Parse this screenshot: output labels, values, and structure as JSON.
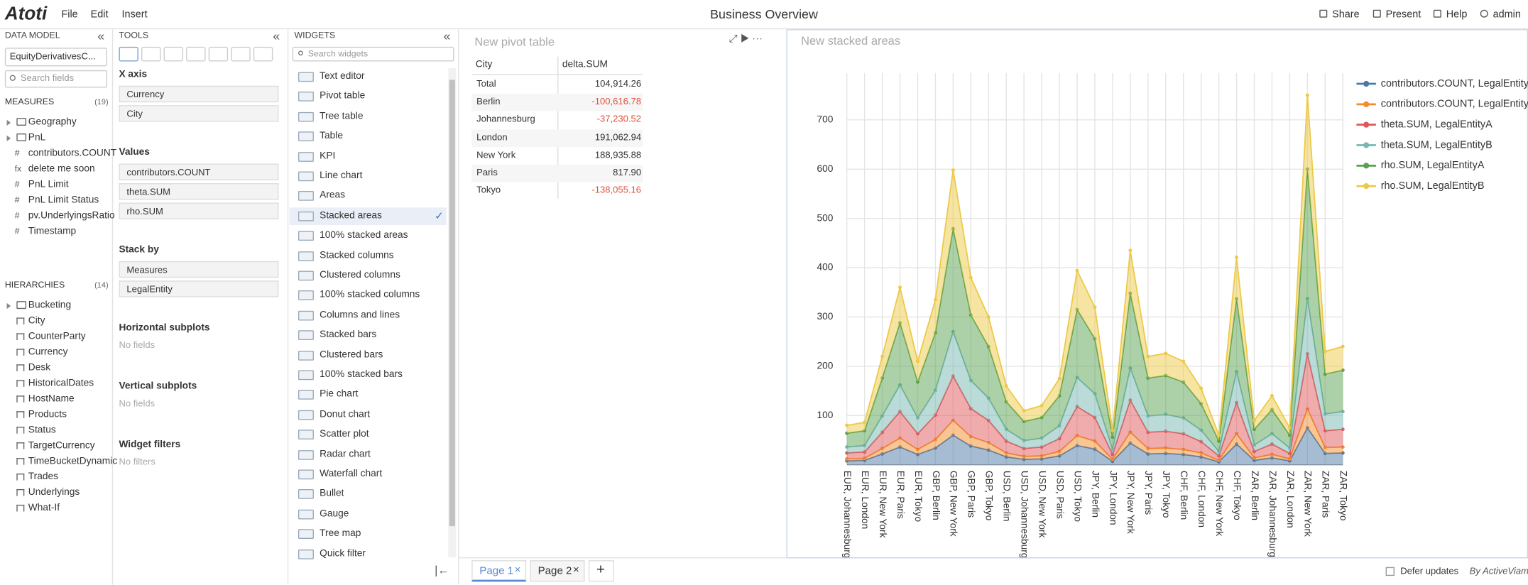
{
  "header": {
    "logo": "Atoti",
    "menu": [
      "File",
      "Edit",
      "Insert"
    ],
    "title": "Business Overview",
    "actions": [
      "Share",
      "Present",
      "Help",
      "admin"
    ]
  },
  "data_model": {
    "title": "DATA MODEL",
    "cube": "EquityDerivativesC...",
    "search": "Search fields",
    "measures_title": "MEASURES",
    "measures_count": "(19)",
    "measures": [
      {
        "label": "Geography",
        "folder": true
      },
      {
        "label": "PnL",
        "folder": true
      },
      {
        "icon": "#",
        "label": "contributors.COUNT"
      },
      {
        "icon": "fx",
        "label": "delete me soon"
      },
      {
        "icon": "#",
        "label": "PnL Limit"
      },
      {
        "icon": "#",
        "label": "PnL Limit Status"
      },
      {
        "icon": "#",
        "label": "pv.UnderlyingsRatio"
      },
      {
        "icon": "#",
        "label": "Timestamp"
      }
    ],
    "hierarchies_title": "HIERARCHIES",
    "hierarchies_count": "(14)",
    "hierarchies": [
      {
        "label": "Bucketing",
        "folder": true
      },
      {
        "label": "City"
      },
      {
        "label": "CounterParty"
      },
      {
        "label": "Currency"
      },
      {
        "label": "Desk"
      },
      {
        "label": "HistoricalDates"
      },
      {
        "label": "HostName"
      },
      {
        "label": "Products"
      },
      {
        "label": "Status"
      },
      {
        "label": "TargetCurrency"
      },
      {
        "label": "TimeBucketDynamic"
      },
      {
        "label": "Trades"
      },
      {
        "label": "Underlyings"
      },
      {
        "label": "What-If"
      }
    ]
  },
  "tools": {
    "title": "TOOLS",
    "sections": [
      {
        "title": "X axis",
        "fields": [
          "Currency",
          "City"
        ]
      },
      {
        "title": "Values",
        "fields": [
          "contributors.COUNT",
          "theta.SUM",
          "rho.SUM"
        ]
      },
      {
        "title": "Stack by",
        "fields": [
          "Measures",
          "LegalEntity"
        ]
      },
      {
        "title": "Horizontal subplots",
        "empty": "No fields"
      },
      {
        "title": "Vertical subplots",
        "empty": "No fields"
      },
      {
        "title": "Widget filters",
        "empty": "No filters"
      }
    ]
  },
  "widgets": {
    "title": "WIDGETS",
    "search": "Search widgets",
    "selected_index": 7,
    "items": [
      "Text editor",
      "Pivot table",
      "Tree table",
      "Table",
      "KPI",
      "Line chart",
      "Areas",
      "Stacked areas",
      "100% stacked areas",
      "Stacked columns",
      "Clustered columns",
      "100% stacked columns",
      "Columns and lines",
      "Stacked bars",
      "Clustered bars",
      "100% stacked bars",
      "Pie chart",
      "Donut chart",
      "Scatter plot",
      "Radar chart",
      "Waterfall chart",
      "Bullet",
      "Gauge",
      "Tree map",
      "Quick filter"
    ]
  },
  "pivot": {
    "title": "New pivot table",
    "columns": [
      "City",
      "delta.SUM"
    ],
    "rows": [
      [
        "Total",
        "104,914.26"
      ],
      [
        "Berlin",
        "-100,616.78"
      ],
      [
        "Johannesburg",
        "-37,230.52"
      ],
      [
        "London",
        "191,062.94"
      ],
      [
        "New York",
        "188,935.88"
      ],
      [
        "Paris",
        "817.90"
      ],
      [
        "Tokyo",
        "-138,055.16"
      ]
    ]
  },
  "footer": {
    "tabs": [
      "Page 1",
      "Page 2"
    ],
    "add": "+",
    "defer": "Defer updates",
    "brand": "By ActiveViam"
  },
  "chart_data": {
    "type": "area",
    "stacked": true,
    "title": "New stacked areas",
    "grid": true,
    "legend": "right",
    "categories": [
      "EUR, Johannesburg",
      "EUR, London",
      "EUR, New York",
      "EUR, Paris",
      "EUR, Tokyo",
      "GBP, Berlin",
      "GBP, New York",
      "GBP, Paris",
      "GBP, Tokyo",
      "USD, Berlin",
      "USD, Johannesburg",
      "USD, New York",
      "USD, Paris",
      "USD, Tokyo",
      "JPY, Berlin",
      "JPY, London",
      "JPY, New York",
      "JPY, Paris",
      "JPY, Tokyo",
      "CHF, Berlin",
      "CHF, London",
      "CHF, New York",
      "CHF, Tokyo",
      "ZAR, Berlin",
      "ZAR, Johannesburg",
      "ZAR, London",
      "ZAR, New York",
      "ZAR, Paris",
      "ZAR, Tokyo"
    ],
    "ylim": [
      0,
      795
    ],
    "yticks": [
      100,
      200,
      300,
      400,
      500,
      600,
      700
    ],
    "series": [
      {
        "name": "contributors.COUNT, LegalEntityA",
        "color": "#4e79a7",
        "values": [
          8,
          9,
          22,
          36,
          21,
          34,
          60,
          38,
          30,
          16,
          11,
          12,
          18,
          39,
          32,
          7,
          44,
          22,
          23,
          21,
          16,
          6,
          42,
          9,
          14,
          8,
          75,
          23,
          24
        ]
      },
      {
        "name": "contributors.COUNT, LegalEntityB",
        "color": "#f28e2b",
        "values": [
          4,
          4,
          11,
          18,
          10,
          17,
          30,
          19,
          15,
          8,
          6,
          6,
          9,
          20,
          16,
          4,
          22,
          11,
          11,
          10,
          8,
          3,
          21,
          5,
          7,
          4,
          38,
          12,
          12
        ]
      },
      {
        "name": "theta.SUM, LegalEntityA",
        "color": "#e15759",
        "values": [
          12,
          13,
          33,
          54,
          32,
          50,
          90,
          57,
          45,
          24,
          16,
          18,
          26,
          59,
          48,
          10,
          65,
          33,
          34,
          32,
          23,
          9,
          63,
          13,
          21,
          11,
          112,
          34,
          36
        ]
      },
      {
        "name": "theta.SUM, LegalEntityB",
        "color": "#76b7b2",
        "values": [
          12,
          13,
          33,
          54,
          32,
          50,
          90,
          57,
          45,
          24,
          16,
          18,
          26,
          59,
          48,
          10,
          65,
          33,
          34,
          32,
          23,
          9,
          63,
          13,
          21,
          11,
          112,
          34,
          36
        ]
      },
      {
        "name": "rho.SUM, LegalEntityA",
        "color": "#59a14f",
        "values": [
          28,
          30,
          77,
          126,
          73,
          117,
          209,
          133,
          105,
          56,
          39,
          42,
          61,
          138,
          112,
          25,
          152,
          77,
          79,
          73,
          54,
          21,
          148,
          32,
          49,
          26,
          263,
          81,
          84
        ]
      },
      {
        "name": "rho.SUM, LegalEntityB",
        "color": "#edc948",
        "values": [
          16,
          17,
          44,
          72,
          42,
          67,
          119,
          76,
          60,
          32,
          22,
          24,
          35,
          79,
          64,
          14,
          87,
          44,
          45,
          42,
          31,
          12,
          84,
          18,
          28,
          15,
          150,
          46,
          48
        ]
      }
    ]
  }
}
